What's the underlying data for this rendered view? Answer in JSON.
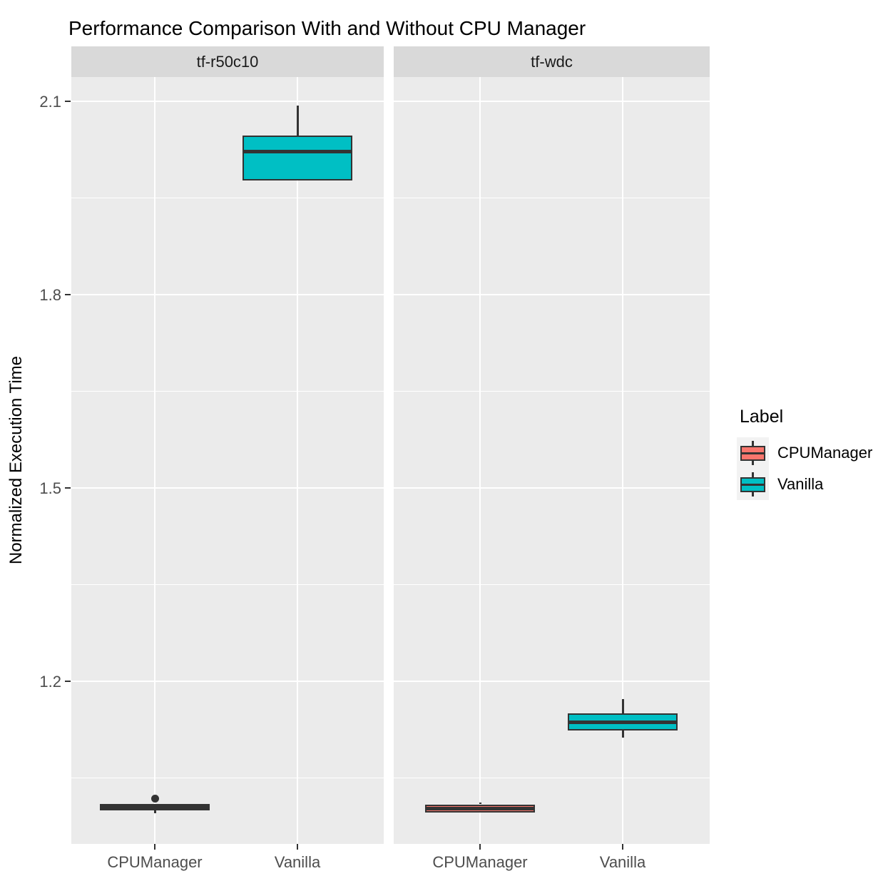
{
  "title": "Performance Comparison With and Without CPU Manager",
  "y_axis": {
    "label": "Normalized Execution Time"
  },
  "legend": {
    "title": "Label",
    "entries": [
      {
        "label": "CPUManager",
        "color": "#F8766D"
      },
      {
        "label": "Vanilla",
        "color": "#00BFC4"
      }
    ]
  },
  "colors": {
    "panel_background": "#EBEBEB",
    "strip_background": "#D9D9D9",
    "gridline": "#FFFFFF",
    "box_border": "#333333",
    "axis_text": "#4D4D4D",
    "cpumanager_fill": "#F8766D",
    "vanilla_fill": "#00BFC4"
  },
  "chart_data": {
    "type": "boxplot",
    "title": "Performance Comparison With and Without CPU Manager",
    "xlabel": "",
    "ylabel": "Normalized Execution Time",
    "y_ticks": [
      1.2,
      1.5,
      1.8,
      2.1
    ],
    "ylim": [
      0.95,
      2.14
    ],
    "grid": true,
    "legend_position": "right",
    "categories": [
      "CPUManager",
      "Vanilla"
    ],
    "facets": [
      {
        "name": "tf-r50c10",
        "boxes": [
          {
            "category": "CPUManager",
            "series": "CPUManager",
            "min": 0.995,
            "q1": 1.0,
            "median": 1.005,
            "q3": 1.01,
            "max": 1.01,
            "outliers": [
              1.018
            ]
          },
          {
            "category": "Vanilla",
            "series": "Vanilla",
            "min": 1.977,
            "q1": 1.977,
            "median": 2.022,
            "q3": 2.047,
            "max": 2.093,
            "outliers": []
          }
        ]
      },
      {
        "name": "tf-wdc",
        "boxes": [
          {
            "category": "CPUManager",
            "series": "CPUManager",
            "min": 0.996,
            "q1": 0.996,
            "median": 1.002,
            "q3": 1.009,
            "max": 1.012,
            "outliers": []
          },
          {
            "category": "Vanilla",
            "series": "Vanilla",
            "min": 1.113,
            "q1": 1.124,
            "median": 1.136,
            "q3": 1.15,
            "max": 1.172,
            "outliers": []
          }
        ]
      }
    ]
  }
}
